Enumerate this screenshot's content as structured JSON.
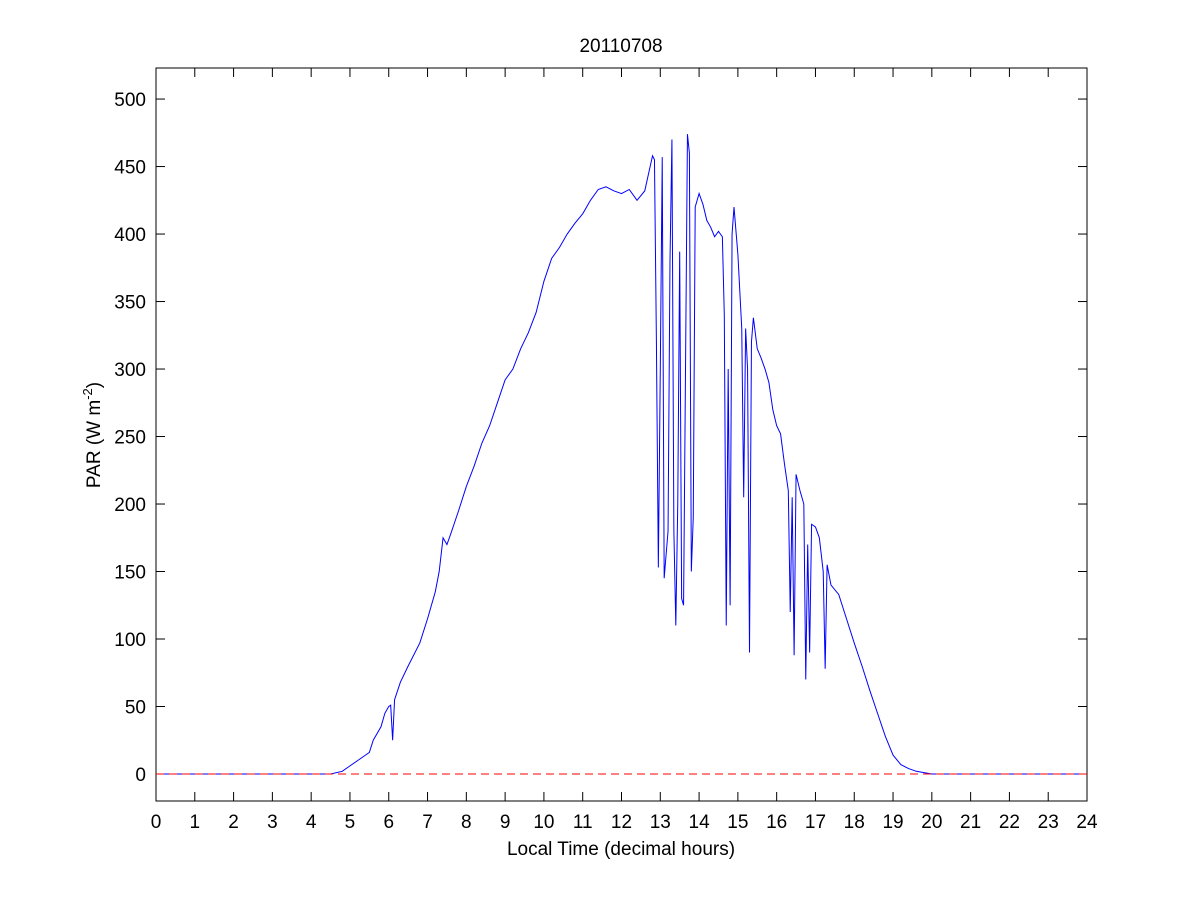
{
  "chart_data": {
    "type": "line",
    "title": "20110708",
    "x_label": "Local Time (decimal hours)",
    "y_label": [
      "PAR (W m",
      "-2",
      ")"
    ],
    "xlim": [
      0,
      24
    ],
    "xticks": [
      0,
      1,
      2,
      3,
      4,
      5,
      6,
      7,
      8,
      9,
      10,
      11,
      12,
      13,
      14,
      15,
      16,
      17,
      18,
      19,
      20,
      21,
      22,
      23,
      24
    ],
    "ylim": [
      -20,
      523
    ],
    "yticks": [
      0,
      50,
      100,
      150,
      200,
      250,
      300,
      350,
      400,
      450,
      500
    ],
    "grid": false,
    "series": [
      {
        "color": "#0000ff",
        "dash": false,
        "x": [
          0,
          4.5,
          4.8,
          5,
          5.2,
          5.4,
          5.5,
          5.6,
          5.8,
          5.9,
          6.0,
          6.05,
          6.1,
          6.15,
          6.3,
          6.5,
          6.8,
          7.0,
          7.2,
          7.3,
          7.4,
          7.5,
          7.6,
          7.8,
          8.0,
          8.2,
          8.4,
          8.6,
          8.8,
          9.0,
          9.2,
          9.4,
          9.6,
          9.8,
          10.0,
          10.2,
          10.4,
          10.6,
          10.8,
          11.0,
          11.2,
          11.4,
          11.6,
          11.8,
          12.0,
          12.2,
          12.4,
          12.6,
          12.7,
          12.8,
          12.85,
          12.9,
          12.95,
          13.0,
          13.05,
          13.1,
          13.2,
          13.25,
          13.3,
          13.35,
          13.4,
          13.45,
          13.5,
          13.55,
          13.6,
          13.65,
          13.7,
          13.75,
          13.8,
          13.85,
          13.9,
          14.0,
          14.1,
          14.2,
          14.3,
          14.4,
          14.5,
          14.6,
          14.65,
          14.7,
          14.75,
          14.8,
          14.85,
          14.9,
          15.0,
          15.1,
          15.15,
          15.2,
          15.25,
          15.3,
          15.35,
          15.4,
          15.5,
          15.6,
          15.7,
          15.8,
          15.9,
          16.0,
          16.1,
          16.2,
          16.3,
          16.35,
          16.4,
          16.45,
          16.5,
          16.6,
          16.7,
          16.75,
          16.8,
          16.85,
          16.9,
          17.0,
          17.1,
          17.2,
          17.25,
          17.3,
          17.4,
          17.6,
          17.8,
          18.0,
          18.2,
          18.4,
          18.6,
          18.8,
          19.0,
          19.2,
          19.4,
          19.6,
          19.8,
          20.0,
          24
        ],
        "values": [
          0,
          0,
          2,
          6,
          10,
          14,
          16,
          25,
          35,
          45,
          50,
          51,
          25,
          55,
          68,
          80,
          97,
          115,
          135,
          150,
          175,
          170,
          178,
          195,
          213,
          228,
          245,
          258,
          275,
          292,
          300,
          315,
          327,
          342,
          365,
          382,
          390,
          400,
          408,
          415,
          425,
          433,
          435,
          432,
          430,
          433,
          425,
          432,
          445,
          458,
          455,
          320,
          153,
          300,
          457,
          145,
          180,
          380,
          470,
          180,
          110,
          200,
          387,
          130,
          125,
          300,
          474,
          460,
          150,
          190,
          420,
          430,
          422,
          410,
          405,
          398,
          402,
          398,
          340,
          110,
          300,
          125,
          400,
          420,
          385,
          330,
          205,
          330,
          300,
          90,
          320,
          338,
          315,
          308,
          300,
          290,
          270,
          258,
          252,
          230,
          210,
          120,
          205,
          88,
          222,
          210,
          200,
          70,
          170,
          90,
          185,
          183,
          175,
          150,
          78,
          155,
          140,
          133,
          115,
          97,
          80,
          62,
          45,
          28,
          14,
          7,
          4,
          2,
          1,
          0,
          0
        ]
      },
      {
        "color": "#ff0000",
        "dash": true,
        "x": [
          0,
          24
        ],
        "values": [
          0,
          0
        ]
      }
    ]
  }
}
